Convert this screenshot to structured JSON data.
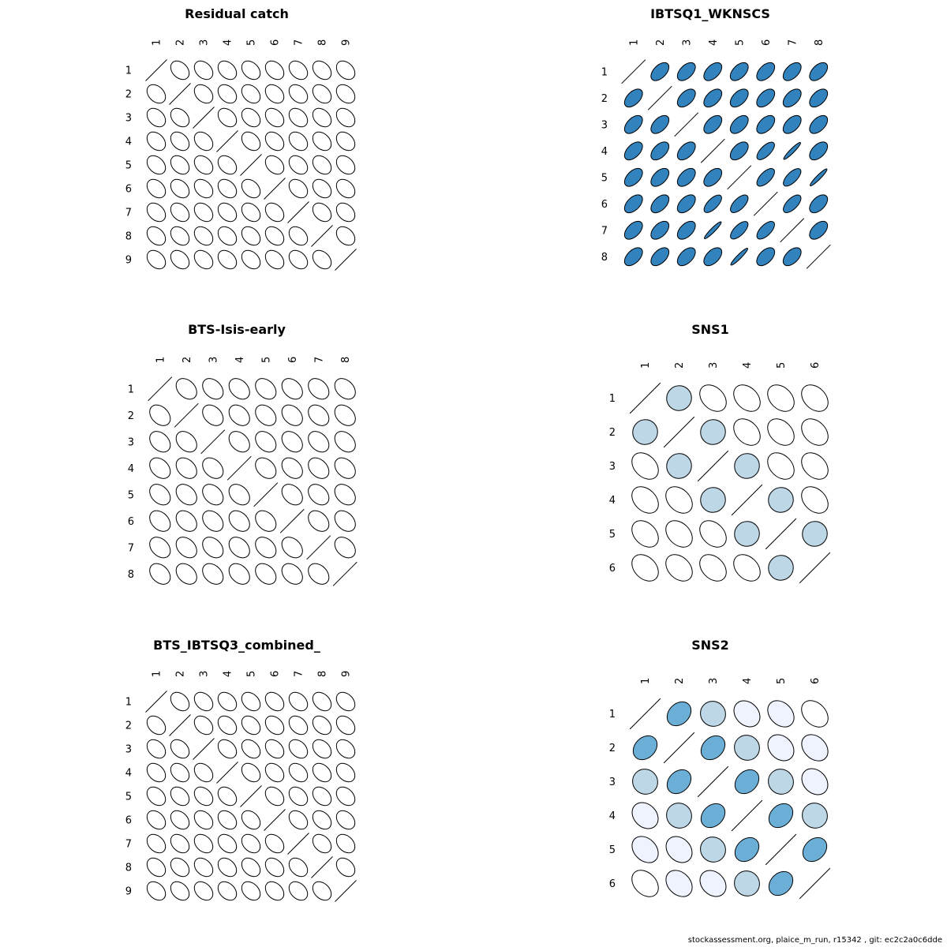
{
  "chart_data": [
    {
      "type": "ellipse-correlation-matrix",
      "title": "Residual catch",
      "labels": [
        "1",
        "2",
        "3",
        "4",
        "5",
        "6",
        "7",
        "8",
        "9"
      ],
      "default_correlation": 0.0
    },
    {
      "type": "ellipse-correlation-matrix",
      "title": "IBTSQ1_WKNSCS",
      "labels": [
        "1",
        "2",
        "3",
        "4",
        "5",
        "6",
        "7",
        "8"
      ],
      "default_correlation": 0.72,
      "correlations": [
        {
          "i": 4,
          "j": 7,
          "r": 0.97
        },
        {
          "i": 5,
          "j": 8,
          "r": 0.97
        },
        {
          "i": 4,
          "j": 6,
          "r": 0.82
        },
        {
          "i": 6,
          "j": 7,
          "r": 0.8
        },
        {
          "i": 5,
          "j": 7,
          "r": 0.82
        },
        {
          "i": 5,
          "j": 6,
          "r": 0.8
        }
      ]
    },
    {
      "type": "ellipse-correlation-matrix",
      "title": "BTS-Isis-early",
      "labels": [
        "1",
        "2",
        "3",
        "4",
        "5",
        "6",
        "7",
        "8"
      ],
      "default_correlation": 0.0
    },
    {
      "type": "ellipse-correlation-matrix",
      "title": "SNS1",
      "labels": [
        "1",
        "2",
        "3",
        "4",
        "5",
        "6"
      ],
      "default_correlation": 0.0,
      "correlations": [
        {
          "i": 1,
          "j": 2,
          "r": 0.35
        },
        {
          "i": 2,
          "j": 3,
          "r": 0.35
        },
        {
          "i": 3,
          "j": 4,
          "r": 0.35
        },
        {
          "i": 4,
          "j": 5,
          "r": 0.35
        },
        {
          "i": 5,
          "j": 6,
          "r": 0.35
        }
      ]
    },
    {
      "type": "ellipse-correlation-matrix",
      "title": "BTS_IBTSQ3_combined_",
      "labels": [
        "1",
        "2",
        "3",
        "4",
        "5",
        "6",
        "7",
        "8",
        "9"
      ],
      "default_correlation": 0.0
    },
    {
      "type": "ellipse-correlation-matrix",
      "title": "SNS2",
      "labels": [
        "1",
        "2",
        "3",
        "4",
        "5",
        "6"
      ],
      "default_correlation": 0.0,
      "correlations": [
        {
          "i": 1,
          "j": 2,
          "r": 0.55
        },
        {
          "i": 1,
          "j": 3,
          "r": 0.3
        },
        {
          "i": 1,
          "j": 4,
          "r": 0.1
        },
        {
          "i": 1,
          "j": 5,
          "r": 0.05
        },
        {
          "i": 2,
          "j": 3,
          "r": 0.55
        },
        {
          "i": 2,
          "j": 4,
          "r": 0.3
        },
        {
          "i": 2,
          "j": 5,
          "r": 0.1
        },
        {
          "i": 2,
          "j": 6,
          "r": 0.05
        },
        {
          "i": 3,
          "j": 4,
          "r": 0.55
        },
        {
          "i": 3,
          "j": 5,
          "r": 0.3
        },
        {
          "i": 3,
          "j": 6,
          "r": 0.1
        },
        {
          "i": 4,
          "j": 5,
          "r": 0.55
        },
        {
          "i": 4,
          "j": 6,
          "r": 0.3
        },
        {
          "i": 5,
          "j": 6,
          "r": 0.55
        }
      ]
    }
  ],
  "colors": {
    "strong": "#3182bd",
    "moderate": "#6baed6",
    "weak": "#bdd7e7",
    "very_weak": "#eff3ff",
    "none": "#ffffff",
    "outline": "#000000"
  },
  "footer": "stockassessment.org, plaice_m_run, r15342 , git: ec2c2a0c6dde"
}
